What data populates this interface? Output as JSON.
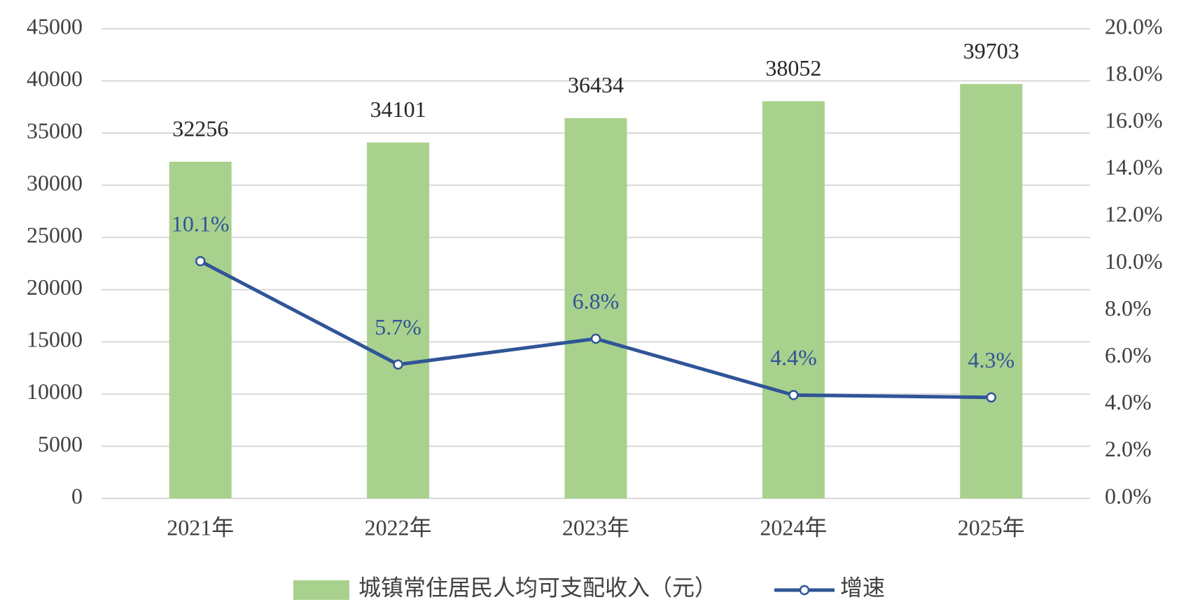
{
  "chart_data": {
    "type": "bar-line",
    "categories": [
      "2021年",
      "2022年",
      "2023年",
      "2024年",
      "2025年"
    ],
    "series": [
      {
        "name": "城镇常住居民人均可支配收入（元）",
        "color": "#a9d18e",
        "type": "bar",
        "values": [
          32256,
          34101,
          36434,
          38052,
          39703
        ]
      },
      {
        "name": "增速",
        "color": "#2f5597",
        "type": "line",
        "axis": "y2",
        "values": [
          10.1,
          5.7,
          6.8,
          4.4,
          4.3
        ],
        "value_labels": [
          "10.1%",
          "5.7%",
          "6.8%",
          "4.4%",
          "4.3%"
        ]
      }
    ],
    "ylim": [
      0,
      45000
    ],
    "yticks": [
      0,
      5000,
      10000,
      15000,
      20000,
      25000,
      30000,
      35000,
      40000,
      45000
    ],
    "y2lim": [
      0,
      20
    ],
    "y2ticks": [
      {
        "value": 0,
        "label": "0.0%"
      },
      {
        "value": 2,
        "label": "2.0%"
      },
      {
        "value": 4,
        "label": "4.0%"
      },
      {
        "value": 6,
        "label": "6.0%"
      },
      {
        "value": 8,
        "label": "8.0%"
      },
      {
        "value": 10,
        "label": "10.0%"
      },
      {
        "value": 12,
        "label": "12.0%"
      },
      {
        "value": 14,
        "label": "14.0%"
      },
      {
        "value": 16,
        "label": "16.0%"
      },
      {
        "value": 18,
        "label": "18.0%"
      },
      {
        "value": 20,
        "label": "20.0%"
      }
    ],
    "grid": true,
    "legend": "bottom"
  }
}
